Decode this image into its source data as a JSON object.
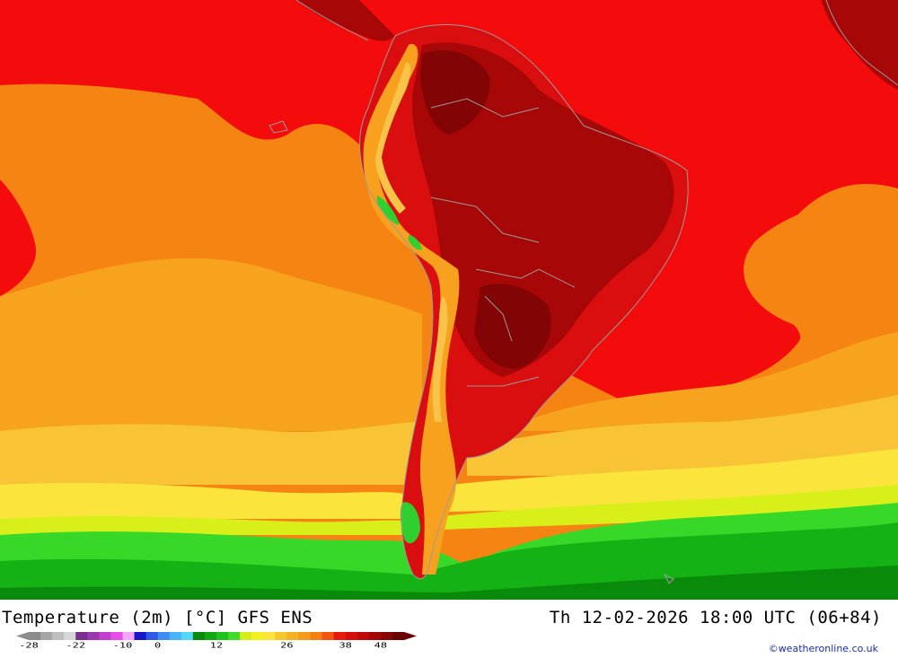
{
  "title": "Temperature (2m) [°C] GFS ENS",
  "valid_time": "Th 12-02-2026 18:00 UTC (06+84)",
  "credit": "©weatheronline.co.uk",
  "legend": {
    "swatches": [
      "#8c8c8c",
      "#a5a5a5",
      "#bebebe",
      "#d7d7d7",
      "#7a2f8f",
      "#9b39b0",
      "#c23fd2",
      "#e34fe8",
      "#f4a6f4",
      "#1818c8",
      "#2f5ae8",
      "#3d8cf4",
      "#47b4fb",
      "#55d8f8",
      "#0a8a0a",
      "#12a812",
      "#1cc41c",
      "#3fdc2a",
      "#d8ec18",
      "#f4f020",
      "#fbe23c",
      "#f7c62c",
      "#f6b023",
      "#f59a1c",
      "#f47f12",
      "#f2560e",
      "#e51a0a",
      "#d40d0d",
      "#c00a0a",
      "#a40707",
      "#8a0505",
      "#6a0303"
    ],
    "labels": [
      "-28",
      "-22",
      "-10",
      "0",
      "12",
      "26",
      "38",
      "48"
    ],
    "label_swatch_index": [
      0,
      4,
      8,
      11,
      16,
      22,
      27,
      30
    ]
  },
  "map_colors": {
    "ocean_north": "#f40b0b",
    "ocean_warm": "#f68412",
    "ocean_mid": "#f7a31d",
    "band_yellow_orange": "#f9c336",
    "band_yellow": "#fbe53c",
    "band_lime": "#d9ef1a",
    "band_green": "#38d828",
    "band_green_mid": "#14b214",
    "band_green_dark": "#0a8a0a",
    "land_red": "#da0e0e",
    "land_dark": "#a80707",
    "land_darkest": "#830404",
    "andes": "#f7a11e",
    "andes_light": "#f8c348",
    "andes_green": "#2ecf2e",
    "coast": "#9b9b9b"
  }
}
